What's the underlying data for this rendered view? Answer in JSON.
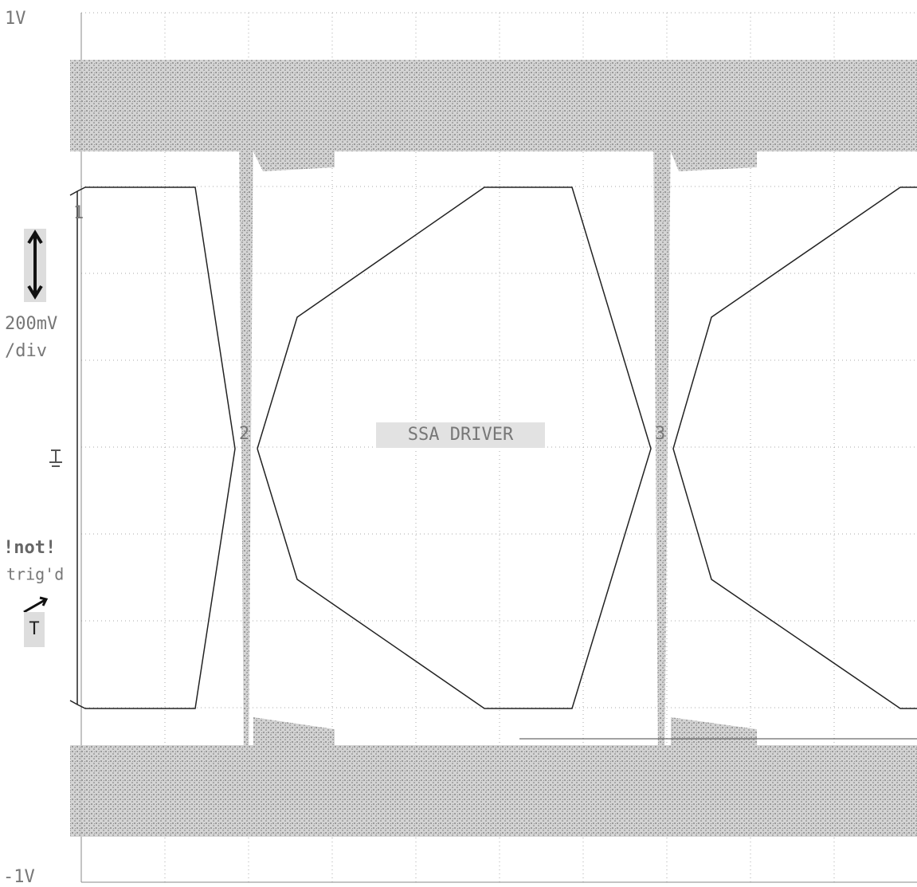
{
  "screen": {
    "top_voltage": "1V",
    "bottom_voltage": "-1V",
    "scale": "200mV",
    "scale_unit": "/div",
    "marker_1": "1",
    "marker_2": "2",
    "marker_3": "3",
    "label": "SSA DRIVER",
    "trigger_status": "!not!",
    "trigger_state": "trig'd",
    "trigger_marker": "T"
  }
}
